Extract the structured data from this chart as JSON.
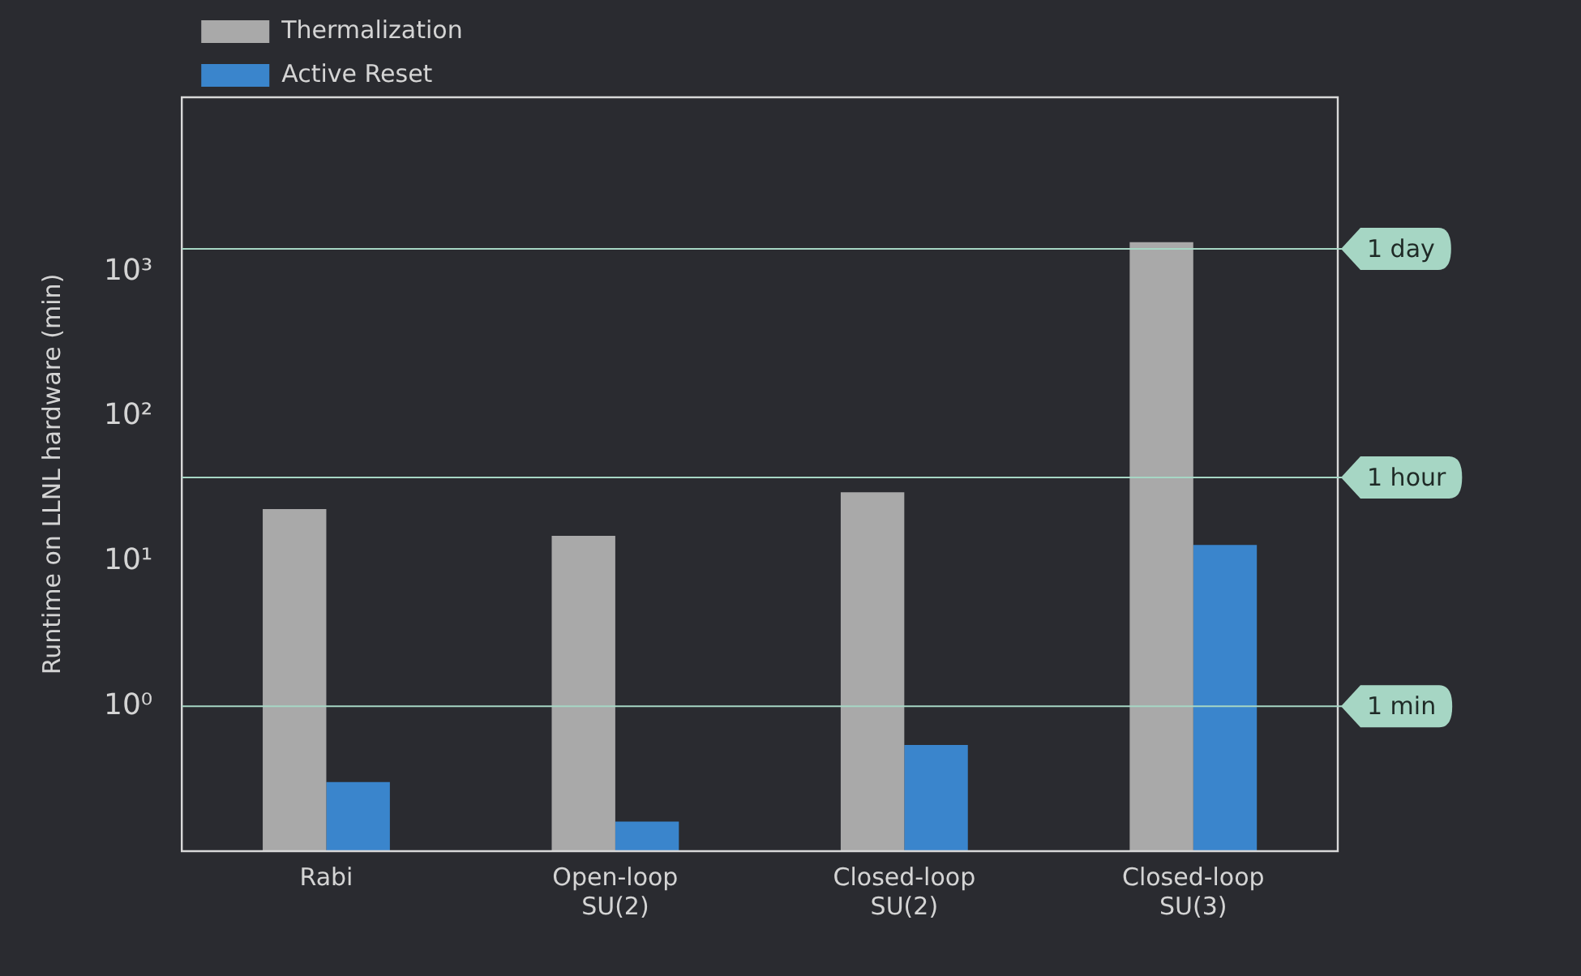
{
  "chart_data": {
    "type": "bar",
    "ylabel": "Runtime on LLNL hardware (min)",
    "categories": [
      "Rabi",
      "Open-loop SU(2)",
      "Closed-loop SU(2)",
      "Closed-loop SU(3)"
    ],
    "series": [
      {
        "name": "Thermalization",
        "color": "#a9a9a9",
        "values": [
          23,
          15,
          30,
          1600
        ]
      },
      {
        "name": "Active Reset",
        "color": "#3a85cc",
        "values": [
          0.3,
          0.16,
          0.54,
          13
        ]
      }
    ],
    "log": "y",
    "ylim": [
      0.1,
      16000
    ],
    "yticks": [
      {
        "value": 1,
        "label": "10⁰"
      },
      {
        "value": 10,
        "label": "10¹"
      },
      {
        "value": 100,
        "label": "10²"
      },
      {
        "value": 1000,
        "label": "10³"
      }
    ],
    "grid": false,
    "legend": "top left",
    "ref_lines": [
      {
        "axis": "y",
        "value": 1440,
        "label": "1 day",
        "color": "#a6d6c4"
      },
      {
        "axis": "y",
        "value": 38,
        "label": "1 hour",
        "color": "#a6d6c4"
      },
      {
        "axis": "y",
        "value": 1,
        "label": "1 min",
        "color": "#a6d6c4"
      }
    ]
  }
}
